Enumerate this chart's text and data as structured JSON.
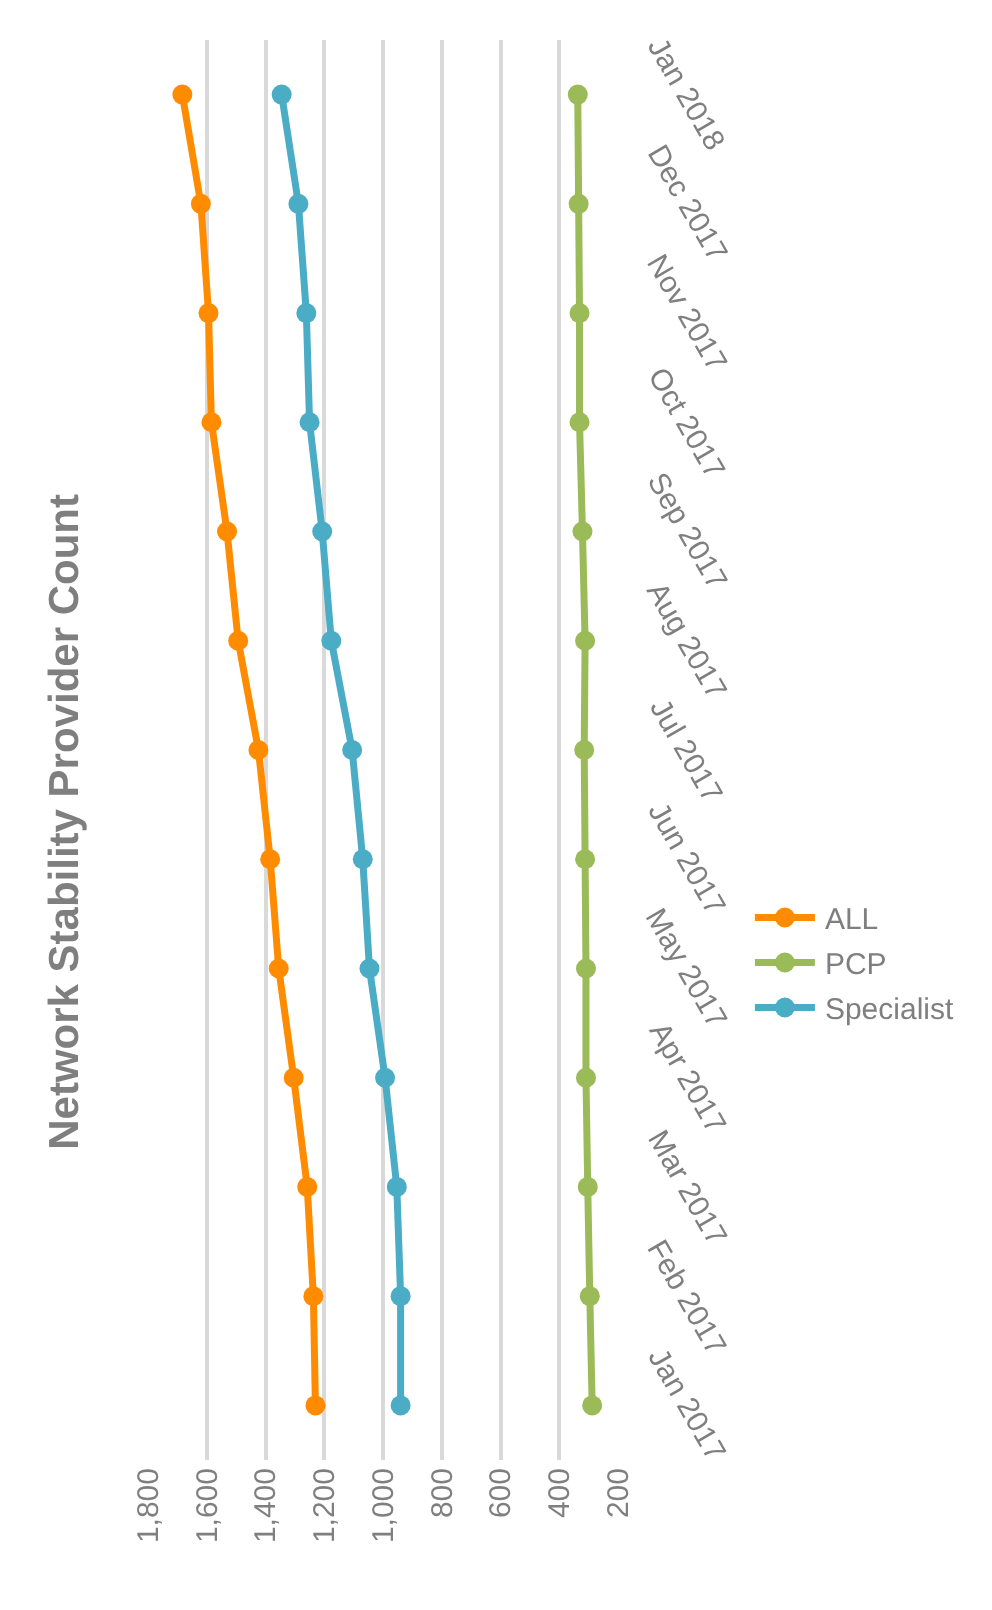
{
  "chart_data": {
    "type": "line",
    "title": "Network Stability Provider Count",
    "orientation": "horizontal",
    "categories": [
      "Jan 2018",
      "Dec 2017",
      "Nov 2017",
      "Oct 2017",
      "Sep 2017",
      "Aug 2017",
      "Jul 2017",
      "Jun 2017",
      "May 2017",
      "Apr 2017",
      "Mar 2017",
      "Feb 2017",
      "Jan 2017"
    ],
    "series": [
      {
        "name": "ALL",
        "color": "#ff8c00",
        "values": [
          1683,
          1620,
          1594,
          1584,
          1531,
          1493,
          1424,
          1384,
          1355,
          1304,
          1258,
          1237,
          1230
        ]
      },
      {
        "name": "PCP",
        "color": "#9bbb59",
        "values": [
          337,
          334,
          331,
          331,
          321,
          312,
          315,
          312,
          309,
          309,
          303,
          296,
          288
        ]
      },
      {
        "name": "Specialist",
        "color": "#4bacc6",
        "values": [
          1345,
          1288,
          1261,
          1250,
          1207,
          1176,
          1105,
          1069,
          1046,
          993,
          953,
          940,
          940
        ]
      }
    ],
    "xlim": [
      1800,
      200
    ],
    "xticks": [
      {
        "value": 1800,
        "label": "1,800"
      },
      {
        "value": 1600,
        "label": "1,600"
      },
      {
        "value": 1400,
        "label": "1,400"
      },
      {
        "value": 1200,
        "label": "1,200"
      },
      {
        "value": 1000,
        "label": "1,000"
      },
      800,
      600,
      400,
      200
    ],
    "grid": "x",
    "legend": "right",
    "marker": "circle",
    "line_style": "solid"
  }
}
